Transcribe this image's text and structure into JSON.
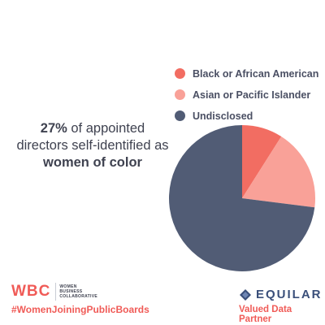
{
  "headline": {
    "line1_bold": "27%",
    "line1_rest": " of appointed",
    "line2": "directors self-identified as",
    "line3_bold": "women of color"
  },
  "chart_data": {
    "type": "pie",
    "categories": [
      "Black or African American",
      "Asian or Pacific Islander",
      "Undisclosed"
    ],
    "values": [
      9,
      18,
      73
    ],
    "colors": [
      "#f26d62",
      "#f9a198",
      "#515c75"
    ],
    "legend_position": "top-right"
  },
  "footer": {
    "wbc_letters": "WBC",
    "wbc_words": [
      "WOMEN",
      "BUSINESS",
      "COLLABORATIVE"
    ],
    "hashtag": "#WomenJoiningPublicBoards",
    "equilar": "EQUILAR",
    "partner": "Valued Data Partner"
  },
  "colors": {
    "accent": "#f05b57",
    "text": "#3f4250",
    "equilar": "#3a4f7a"
  }
}
